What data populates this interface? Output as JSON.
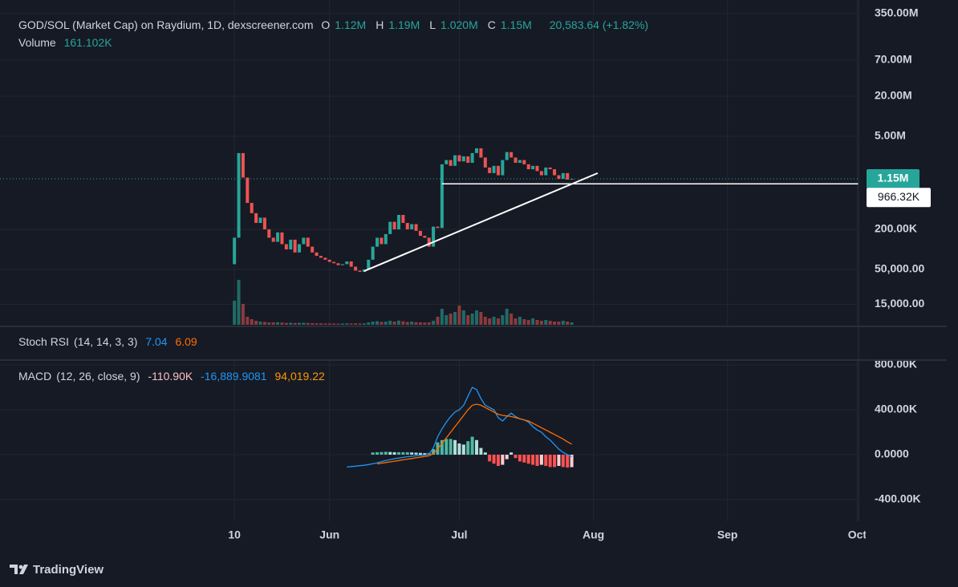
{
  "chart_data": {
    "type": "candlestick",
    "title": "GOD/SOL (Market Cap) on Raydium, 1D, dexscreener.com",
    "ohlc_legend": [
      {
        "label": "O",
        "value": "1.12M"
      },
      {
        "label": "H",
        "value": "1.19M"
      },
      {
        "label": "L",
        "value": "1.020M"
      },
      {
        "label": "C",
        "value": "1.15M"
      }
    ],
    "change": "20,583.64 (+1.82%)",
    "volume_label": "Volume",
    "volume_value": "161.102K",
    "colors": {
      "up": "#26a69a",
      "down": "#ef5350",
      "up_volume": "#1f6b66",
      "down_volume": "#8c3a3d"
    },
    "log_scale": true,
    "grid": true,
    "xlim": [
      76.8,
      275.3
    ],
    "xticks": [
      {
        "value": 131,
        "label": "10"
      },
      {
        "value": 153,
        "label": "Jun"
      },
      {
        "value": 183,
        "label": "Jul"
      },
      {
        "value": 214,
        "label": "Aug"
      },
      {
        "value": 245,
        "label": "Sep"
      },
      {
        "value": 275,
        "label": "Oct"
      }
    ],
    "ylim": [
      7380,
      558000000
    ],
    "yticks": [
      {
        "value": 15000,
        "label": "15,000.00"
      },
      {
        "value": 50000,
        "label": "50,000.00"
      },
      {
        "value": 200000,
        "label": "200.00K"
      },
      {
        "value": 5000000,
        "label": "5.00M"
      },
      {
        "value": 20000000,
        "label": "20.00M"
      },
      {
        "value": 70000000,
        "label": "70.00M"
      },
      {
        "value": 350000000,
        "label": "350.00M"
      }
    ],
    "x": [
      131,
      132,
      133,
      134,
      135,
      136,
      137,
      138,
      139,
      140,
      141,
      142,
      143,
      144,
      145,
      146,
      147,
      148,
      149,
      150,
      151,
      152,
      153,
      154,
      155,
      156,
      157,
      158,
      159,
      160,
      161,
      162,
      163,
      164,
      165,
      166,
      167,
      168,
      169,
      170,
      171,
      172,
      173,
      174,
      175,
      176,
      177,
      178,
      179,
      180,
      181,
      182,
      183,
      184,
      185,
      186,
      187,
      188,
      189,
      190,
      191,
      192,
      193,
      194,
      195,
      196,
      197,
      198,
      199,
      200,
      201,
      202,
      203,
      204,
      205,
      206,
      207,
      208,
      209
    ],
    "open": [
      60000,
      150000,
      2800000,
      1200000,
      500000,
      350000,
      250000,
      300000,
      200000,
      150000,
      130000,
      180000,
      120000,
      100000,
      140000,
      90000,
      120000,
      150000,
      110000,
      90000,
      80000,
      75000,
      70000,
      65000,
      62000,
      58000,
      60000,
      66000,
      55000,
      48000,
      46000,
      50000,
      70000,
      110000,
      150000,
      120000,
      170000,
      260000,
      200000,
      330000,
      250000,
      200000,
      240000,
      190000,
      160000,
      150000,
      110000,
      220000,
      210000,
      1900000,
      2200000,
      1800000,
      2600000,
      2100000,
      2500000,
      2000000,
      2800000,
      3300000,
      2400000,
      1700000,
      1400000,
      1800000,
      1300000,
      2200000,
      2900000,
      2400000,
      2000000,
      2200000,
      1900000,
      1600000,
      1800000,
      1500000,
      1300000,
      1700000,
      1600000,
      1300000,
      1150000,
      1400000,
      1120000
    ],
    "close": [
      150000,
      2800000,
      1200000,
      500000,
      350000,
      250000,
      300000,
      200000,
      150000,
      130000,
      180000,
      120000,
      100000,
      140000,
      90000,
      120000,
      150000,
      110000,
      90000,
      80000,
      75000,
      70000,
      65000,
      62000,
      58000,
      60000,
      66000,
      55000,
      48000,
      46000,
      50000,
      70000,
      110000,
      150000,
      120000,
      170000,
      260000,
      200000,
      330000,
      250000,
      200000,
      240000,
      190000,
      160000,
      150000,
      110000,
      220000,
      210000,
      1900000,
      2200000,
      1800000,
      2600000,
      2100000,
      2500000,
      2000000,
      2800000,
      3300000,
      2400000,
      1700000,
      1400000,
      1800000,
      1300000,
      2200000,
      2900000,
      2400000,
      2000000,
      2200000,
      1900000,
      1600000,
      1800000,
      1500000,
      1300000,
      1700000,
      1600000,
      1300000,
      1150000,
      1400000,
      1120000,
      1150000
    ],
    "volume": [
      1500000,
      2800000,
      1300000,
      500000,
      350000,
      250000,
      200000,
      180000,
      150000,
      150000,
      160000,
      140000,
      120000,
      130000,
      110000,
      120000,
      130000,
      110000,
      100000,
      90000,
      90000,
      80000,
      80000,
      80000,
      70000,
      80000,
      90000,
      80000,
      90000,
      80000,
      90000,
      150000,
      200000,
      220000,
      180000,
      200000,
      250000,
      200000,
      260000,
      220000,
      180000,
      200000,
      160000,
      150000,
      140000,
      150000,
      250000,
      500000,
      1000000,
      600000,
      700000,
      800000,
      1200000,
      900000,
      600000,
      700000,
      900000,
      800000,
      500000,
      400000,
      500000,
      400000,
      600000,
      1000000,
      700000,
      400000,
      500000,
      350000,
      300000,
      400000,
      300000,
      250000,
      300000,
      250000,
      200000,
      200000,
      250000,
      200000,
      150000
    ],
    "volume_lim": [
      0,
      3000000
    ],
    "last_price": {
      "value": 1150000,
      "label": "1.15M"
    },
    "hline": {
      "value": 966320,
      "label": "966.32K"
    },
    "trendline": {
      "x": [
        161,
        215
      ],
      "y": [
        47300,
        1400000
      ]
    },
    "stoch_rsi": {
      "name": "Stoch RSI",
      "params": "(14, 14, 3, 3)",
      "k": "7.04",
      "d": "6.09"
    },
    "macd": {
      "name": "MACD",
      "params": "(12, 26, close, 9)",
      "hist_label": "-110.90K",
      "macd_label": "-16,889.9081",
      "signal_label": "94,019.22",
      "colors": {
        "macd": "#2196f3",
        "signal": "#ff6d00",
        "hist_up": "#4fb7a4",
        "hist_up_light": "#b2dfdb",
        "hist_down": "#ff5252",
        "hist_down_light": "#ffcdd2"
      },
      "ylim": [
        -592857,
        835714
      ],
      "yticks": [
        {
          "value": 800000,
          "label": "800.00K"
        },
        {
          "value": 400000,
          "label": "400.00K"
        },
        {
          "value": 0,
          "label": "0.0000"
        },
        {
          "value": -400000,
          "label": "-400.00K"
        }
      ],
      "x": [
        157,
        158,
        159,
        160,
        161,
        162,
        163,
        164,
        165,
        166,
        167,
        168,
        169,
        170,
        171,
        172,
        173,
        174,
        175,
        176,
        177,
        178,
        179,
        180,
        181,
        182,
        183,
        184,
        185,
        186,
        187,
        188,
        189,
        190,
        191,
        192,
        193,
        194,
        195,
        196,
        197,
        198,
        199,
        200,
        201,
        202,
        203,
        204,
        205,
        206,
        207,
        208,
        209
      ],
      "macd": [
        -110000,
        -106000,
        -102000,
        -98000,
        -94000,
        -88000,
        -80000,
        -72000,
        -62000,
        -52000,
        -44000,
        -36000,
        -30000,
        -24000,
        -18000,
        -14000,
        -10000,
        -6000,
        -2000,
        5000,
        60000,
        160000,
        230000,
        290000,
        340000,
        380000,
        400000,
        440000,
        520000,
        600000,
        580000,
        500000,
        440000,
        420000,
        400000,
        330000,
        300000,
        340000,
        370000,
        340000,
        320000,
        310000,
        290000,
        250000,
        220000,
        200000,
        160000,
        130000,
        90000,
        50000,
        20000,
        0,
        -16889.9081
      ],
      "signal": [
        null,
        null,
        null,
        null,
        null,
        null,
        null,
        -82000,
        -76000,
        -70000,
        -64000,
        -58000,
        -52000,
        -46000,
        -40000,
        -34000,
        -28000,
        -22000,
        -16000,
        -10000,
        10000,
        50000,
        100000,
        150000,
        200000,
        250000,
        300000,
        350000,
        400000,
        440000,
        450000,
        440000,
        420000,
        400000,
        380000,
        360000,
        350000,
        345000,
        340000,
        330000,
        320000,
        310000,
        300000,
        280000,
        260000,
        240000,
        220000,
        200000,
        180000,
        160000,
        140000,
        115000,
        94019.22
      ],
      "histogram": [
        null,
        null,
        null,
        null,
        null,
        null,
        20000,
        22000,
        24000,
        26000,
        24000,
        22000,
        22000,
        22000,
        22000,
        20000,
        18000,
        16000,
        14000,
        15000,
        50000,
        110000,
        130000,
        140000,
        140000,
        130000,
        100000,
        90000,
        120000,
        160000,
        130000,
        60000,
        20000,
        -60000,
        -80000,
        -100000,
        -90000,
        -40000,
        20000,
        -30000,
        -60000,
        -70000,
        -80000,
        -90000,
        -100000,
        -90000,
        -100000,
        -110000,
        -110000,
        -100000,
        -110000,
        -115000,
        -110900
      ]
    },
    "brand": "TradingView"
  }
}
